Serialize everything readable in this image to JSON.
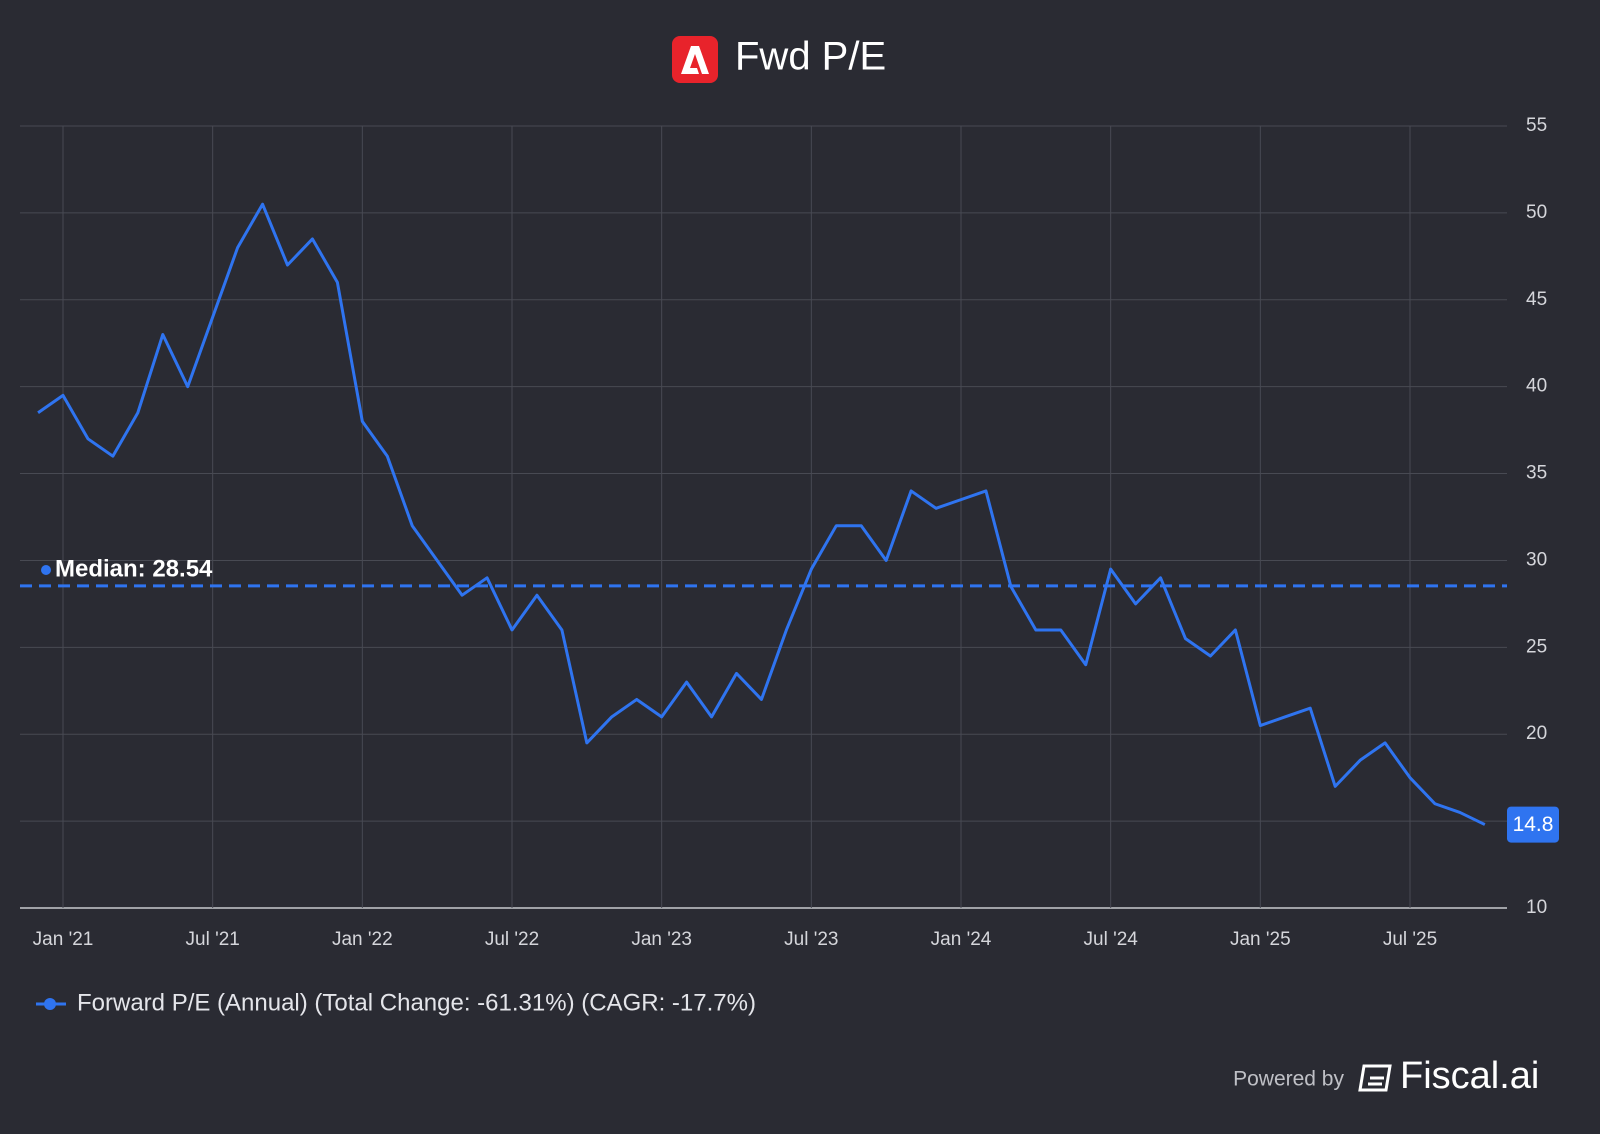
{
  "chart_data": {
    "type": "line",
    "title": "Fwd P/E",
    "x": [
      "2020-12",
      "2021-01",
      "2021-02",
      "2021-03",
      "2021-04",
      "2021-05",
      "2021-06",
      "2021-07",
      "2021-08",
      "2021-09",
      "2021-10",
      "2021-11",
      "2021-12",
      "2022-01",
      "2022-02",
      "2022-03",
      "2022-04",
      "2022-05",
      "2022-06",
      "2022-07",
      "2022-08",
      "2022-09",
      "2022-10",
      "2022-11",
      "2022-12",
      "2023-01",
      "2023-02",
      "2023-03",
      "2023-04",
      "2023-05",
      "2023-06",
      "2023-07",
      "2023-08",
      "2023-09",
      "2023-10",
      "2023-11",
      "2023-12",
      "2024-01",
      "2024-02",
      "2024-03",
      "2024-04",
      "2024-05",
      "2024-06",
      "2024-07",
      "2024-08",
      "2024-09",
      "2024-10",
      "2024-11",
      "2024-12",
      "2025-01",
      "2025-02",
      "2025-03",
      "2025-04",
      "2025-05",
      "2025-06",
      "2025-07",
      "2025-08",
      "2025-09",
      "2025-10"
    ],
    "series": [
      {
        "name": "Forward P/E (Annual) (Total Change: -61.31%) (CAGR: -17.7%)",
        "color": "#2f74f0",
        "values": [
          38.5,
          39.5,
          37,
          36,
          38.5,
          43,
          40,
          44,
          48,
          50.5,
          47,
          48.5,
          46,
          38,
          36,
          32,
          30,
          28,
          29,
          26,
          28,
          26,
          19.5,
          21,
          22,
          21,
          23,
          21,
          23.5,
          22,
          26,
          29.5,
          32,
          32,
          30,
          34,
          33,
          33.5,
          34,
          28.5,
          26,
          26,
          24,
          29.5,
          27.5,
          29,
          25.5,
          24.5,
          26,
          20.5,
          21,
          21.5,
          17,
          18.5,
          19.5,
          17.5,
          16,
          15.5,
          14.8
        ]
      }
    ],
    "median": {
      "value": 28.54,
      "label": "Median: 28.54"
    },
    "ylim": [
      10,
      55
    ],
    "yticks": [
      10,
      15,
      20,
      25,
      30,
      35,
      40,
      45,
      50,
      55
    ],
    "xticks": [
      {
        "value": "2021-01",
        "label": "Jan '21"
      },
      {
        "value": "2021-07",
        "label": "Jul '21"
      },
      {
        "value": "2022-01",
        "label": "Jan '22"
      },
      {
        "value": "2022-07",
        "label": "Jul '22"
      },
      {
        "value": "2023-01",
        "label": "Jan '23"
      },
      {
        "value": "2023-07",
        "label": "Jul '23"
      },
      {
        "value": "2024-01",
        "label": "Jan '24"
      },
      {
        "value": "2024-07",
        "label": "Jul '24"
      },
      {
        "value": "2025-01",
        "label": "Jan '25"
      },
      {
        "value": "2025-07",
        "label": "Jul '25"
      }
    ],
    "grid": true
  },
  "footer": {
    "prefix": "Powered by",
    "brand": "Fiscal.ai"
  }
}
